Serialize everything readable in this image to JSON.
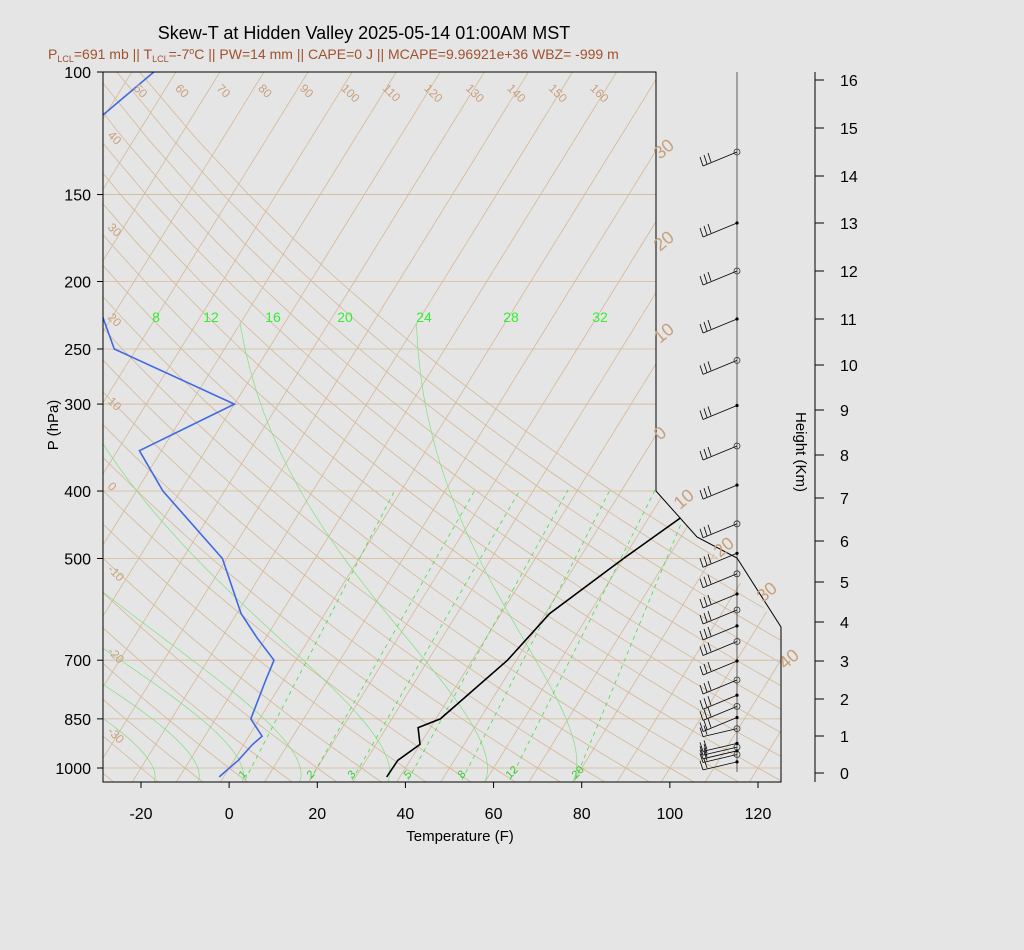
{
  "title": "Skew-T at Hidden Valley 2025-05-14 01:00AM MST",
  "subtitle": {
    "plcl_p": "P",
    "plcl_sub": "LCL",
    "plcl_val": "=691 mb || T",
    "tlcl_sub": "LCL",
    "tlcl_val": "=-7",
    "deg": "o",
    "rest": "C || PW=14 mm || CAPE=0 J || MCAPE=9.96921e+36 WBZ= -999 m"
  },
  "y_axis_label": "P (hPa)",
  "x_axis_label": "Temperature (F)",
  "right_axis_label": "Height (Km)",
  "colors": {
    "background": "#e5e5e5",
    "temperature": "#000000",
    "dewpoint": "#4169e1",
    "isotherm": "#d2b48c",
    "mixing_ratio": "#33cc33",
    "adiabat": "#66dd66",
    "label_tan": "#c8a07a"
  },
  "chart_data": {
    "type": "skew-t",
    "pressure_ticks": [
      100,
      150,
      200,
      250,
      300,
      400,
      500,
      700,
      850,
      1000
    ],
    "pressure_tick_labels": [
      "100",
      "150",
      "200",
      "250",
      "300",
      "400",
      "500",
      "700",
      "850",
      "1000"
    ],
    "pressure_range": [
      1030,
      100
    ],
    "temp_ticks_f": [
      -20,
      0,
      20,
      40,
      60,
      80,
      100,
      120
    ],
    "temp_tick_labels": [
      "-20",
      "0",
      "20",
      "40",
      "60",
      "80",
      "100",
      "120"
    ],
    "temp_range_f": [
      -29,
      125
    ],
    "height_ticks_km": [
      0,
      1,
      2,
      3,
      4,
      5,
      6,
      7,
      8,
      9,
      10,
      11,
      12,
      13,
      14,
      15,
      16
    ],
    "height_tick_labels": [
      "0",
      "1",
      "2",
      "3",
      "4",
      "5",
      "6",
      "7",
      "8",
      "9",
      "10",
      "11",
      "12",
      "13",
      "14",
      "15",
      "16"
    ],
    "isotherm_labels": [
      "50",
      "60",
      "70",
      "80",
      "90",
      "100",
      "110",
      "120",
      "130",
      "140",
      "150",
      "160"
    ],
    "left_isotherm_labels": [
      "40",
      "30",
      "20",
      "10",
      "0",
      "-10",
      "-20",
      "-30"
    ],
    "theta_e_labels": [
      "8",
      "12",
      "16",
      "20",
      "24",
      "28",
      "32"
    ],
    "mixing_ratio_labels": [
      "1",
      "2",
      "3",
      "5",
      "8",
      "12",
      "20"
    ],
    "pw_scale_labels": [
      "30",
      "20",
      "10",
      "0",
      "10",
      "20",
      "30",
      "40"
    ],
    "series": [
      {
        "name": "temperature",
        "points": [
          [
            1030,
            37
          ],
          [
            975,
            37.2
          ],
          [
            925,
            40
          ],
          [
            875,
            37.2
          ],
          [
            850,
            41
          ],
          [
            700,
            48
          ],
          [
            600,
            51
          ],
          [
            500,
            60
          ],
          [
            400,
            72
          ],
          [
            350,
            85
          ],
          [
            300,
            96
          ],
          [
            250,
            112
          ],
          [
            215,
            128
          ],
          [
            200,
            138
          ],
          [
            170,
            158
          ],
          [
            150,
            188
          ],
          [
            130,
            215
          ],
          [
            100,
            295
          ]
        ]
      },
      {
        "name": "dewpoint",
        "points": [
          [
            1030,
            -1
          ],
          [
            975,
            1
          ],
          [
            925,
            2
          ],
          [
            900,
            3
          ],
          [
            850,
            -2
          ],
          [
            750,
            -4
          ],
          [
            700,
            -5
          ],
          [
            650,
            -12
          ],
          [
            600,
            -19
          ],
          [
            500,
            -31
          ],
          [
            400,
            -54
          ],
          [
            350,
            -65
          ],
          [
            300,
            -50
          ],
          [
            250,
            -85
          ],
          [
            200,
            -100
          ],
          [
            140,
            -128
          ],
          [
            100,
            -115
          ]
        ]
      }
    ],
    "wind_levels_height_km": [
      0.3,
      0.5,
      0.6,
      0.7,
      0.8,
      1.2,
      1.5,
      1.8,
      2.1,
      2.5,
      3.0,
      3.5,
      3.9,
      4.3,
      4.7,
      5.2,
      5.7,
      6.4,
      7.3,
      8.2,
      9.1,
      10.1,
      11.0,
      12.0,
      13.0,
      14.5
    ]
  }
}
